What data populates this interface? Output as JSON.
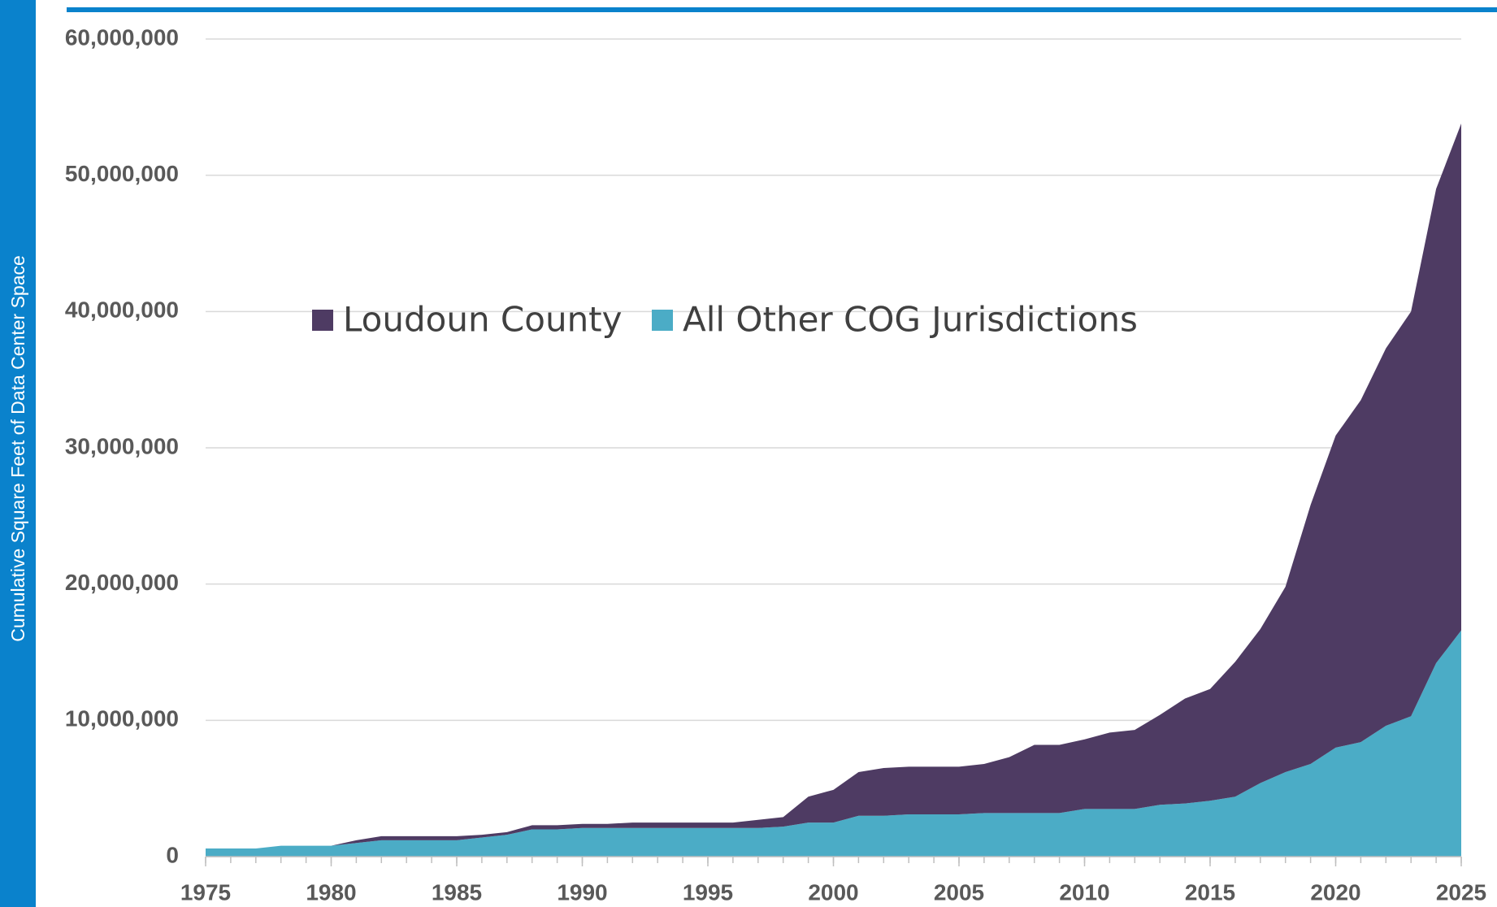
{
  "chart_data": {
    "type": "stacked_area",
    "y_label": "Cumulative Square Feet of Data Center Space",
    "x": [
      1975,
      1976,
      1977,
      1978,
      1979,
      1980,
      1981,
      1982,
      1983,
      1984,
      1985,
      1986,
      1987,
      1988,
      1989,
      1990,
      1991,
      1992,
      1993,
      1994,
      1995,
      1996,
      1997,
      1998,
      1999,
      2000,
      2001,
      2002,
      2003,
      2004,
      2005,
      2006,
      2007,
      2008,
      2009,
      2010,
      2011,
      2012,
      2013,
      2014,
      2015,
      2016,
      2017,
      2018,
      2019,
      2020,
      2021,
      2022,
      2023,
      2024,
      2025
    ],
    "series": [
      {
        "name": "Loudoun County",
        "color": "#4e3b63",
        "values": [
          0,
          0,
          0,
          0,
          0,
          0,
          200000,
          300000,
          300000,
          300000,
          300000,
          200000,
          200000,
          300000,
          300000,
          300000,
          300000,
          400000,
          400000,
          400000,
          400000,
          400000,
          600000,
          700000,
          1900000,
          2400000,
          3200000,
          3500000,
          3500000,
          3500000,
          3500000,
          3600000,
          4100000,
          5000000,
          5000000,
          5100000,
          5600000,
          5800000,
          6600000,
          7700000,
          8200000,
          9900000,
          11300000,
          13600000,
          19000000,
          22900000,
          25100000,
          27700000,
          29700000,
          34800000,
          37200000
        ]
      },
      {
        "name": "All Other COG Jurisdictions",
        "color": "#4bacc6",
        "values": [
          600000,
          600000,
          600000,
          800000,
          800000,
          800000,
          1000000,
          1200000,
          1200000,
          1200000,
          1200000,
          1400000,
          1600000,
          2000000,
          2000000,
          2100000,
          2100000,
          2100000,
          2100000,
          2100000,
          2100000,
          2100000,
          2100000,
          2200000,
          2500000,
          2500000,
          3000000,
          3000000,
          3100000,
          3100000,
          3100000,
          3200000,
          3200000,
          3200000,
          3200000,
          3500000,
          3500000,
          3500000,
          3800000,
          3900000,
          4100000,
          4400000,
          5400000,
          6200000,
          6800000,
          8000000,
          8400000,
          9600000,
          10300000,
          14200000,
          16600000
        ]
      }
    ],
    "xlim": [
      1975,
      2025
    ],
    "xticks": [
      1975,
      1980,
      1985,
      1990,
      1995,
      2000,
      2005,
      2010,
      2015,
      2020,
      2025
    ],
    "ylim": [
      0,
      60000000
    ],
    "yticks": [
      0,
      {
        "value": 10000000,
        "label": "10,000,000"
      },
      {
        "value": 20000000,
        "label": "20,000,000"
      },
      {
        "value": 30000000,
        "label": "30,000,000"
      },
      {
        "value": 40000000,
        "label": "40,000,000"
      },
      {
        "value": 50000000,
        "label": "50,000,000"
      },
      {
        "value": 60000000,
        "label": "60,000,000"
      }
    ],
    "grid": true,
    "legend": "top"
  }
}
